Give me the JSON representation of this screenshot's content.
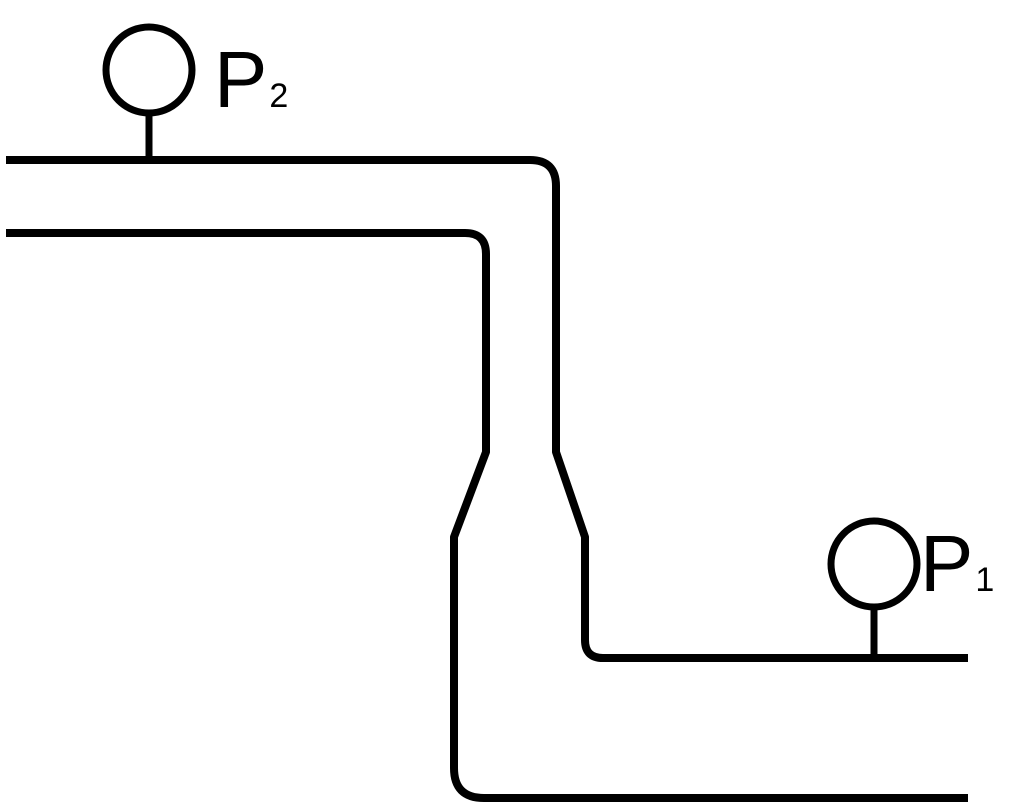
{
  "labels": {
    "gauge_p2": {
      "letter": "P",
      "subscript": "2"
    },
    "gauge_p1": {
      "letter": "P",
      "subscript": "1"
    }
  },
  "colors": {
    "line": "#000000",
    "background": "#ffffff"
  },
  "icons": {
    "gauge_p2": "pressure-gauge-icon",
    "gauge_p1": "pressure-gauge-icon"
  }
}
